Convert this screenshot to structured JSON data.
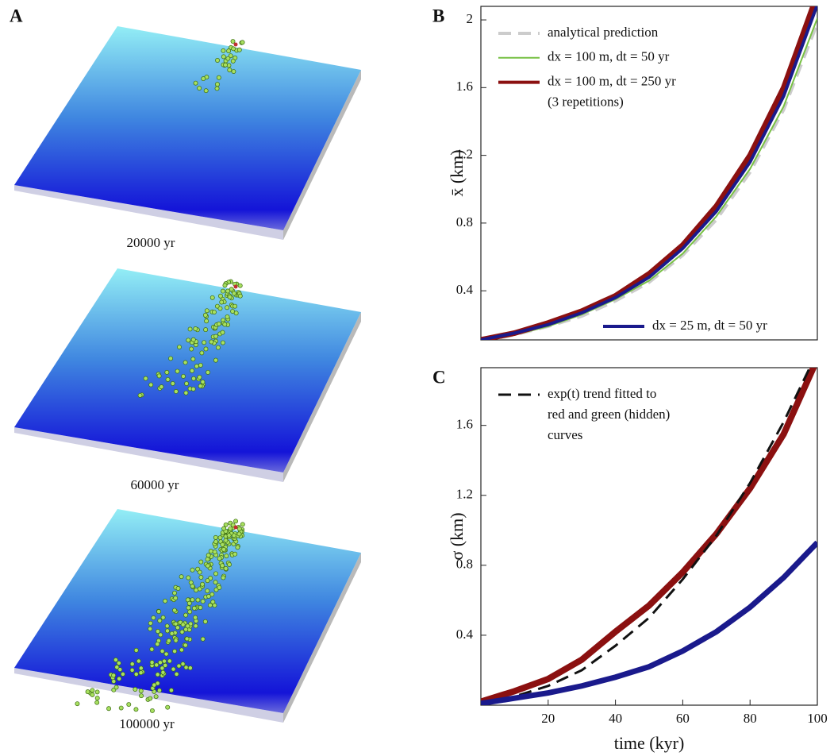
{
  "panel_a": {
    "label": "A",
    "captions": [
      "20000 yr",
      "60000 yr",
      "100000 yr"
    ]
  },
  "chart_data": [
    {
      "type": "line",
      "label": "B",
      "ylabel": "x̄ (km)",
      "x": [
        0,
        10,
        20,
        30,
        40,
        50,
        60,
        70,
        80,
        90,
        100
      ],
      "xlim": [
        0,
        100
      ],
      "ylim": [
        0.11,
        2.08
      ],
      "yticks": [
        0.4,
        0.8,
        1.2,
        1.6,
        2
      ],
      "series": [
        {
          "name": [
            "analytical prediction"
          ],
          "color": "#cccccc",
          "dash": true,
          "width": 4,
          "legend": "upper left",
          "values": [
            0.1,
            0.14,
            0.19,
            0.25,
            0.34,
            0.45,
            0.61,
            0.82,
            1.1,
            1.47,
            1.98
          ]
        },
        {
          "name": [
            "dx = 100 m, dt = 50 yr"
          ],
          "color": "#77c043",
          "dash": false,
          "width": 2,
          "legend": "upper left",
          "values": [
            0.11,
            0.14,
            0.19,
            0.26,
            0.35,
            0.46,
            0.62,
            0.84,
            1.12,
            1.49,
            2.01
          ]
        },
        {
          "name": [
            "dx = 100 m, dt = 250 yr",
            "(3 repetitions)"
          ],
          "color": "#8b1010",
          "dash": false,
          "width": 7,
          "legend": "upper left",
          "values": [
            0.11,
            0.15,
            0.21,
            0.28,
            0.37,
            0.5,
            0.67,
            0.9,
            1.2,
            1.6,
            2.15
          ]
        },
        {
          "name": [
            "dx = 25 m, dt = 50 yr"
          ],
          "color": "#1a1a8c",
          "dash": false,
          "width": 4,
          "legend": "lower right",
          "values": [
            0.11,
            0.15,
            0.2,
            0.27,
            0.36,
            0.48,
            0.65,
            0.87,
            1.16,
            1.55,
            2.09
          ]
        }
      ]
    },
    {
      "type": "line",
      "label": "C",
      "ylabel": "σ (km)",
      "xlabel": "time (kyr)",
      "x": [
        0,
        10,
        20,
        30,
        40,
        50,
        60,
        70,
        80,
        90,
        100
      ],
      "xlim": [
        0,
        100
      ],
      "xticks": [
        20,
        40,
        60,
        80,
        100
      ],
      "ylim": [
        0,
        1.93
      ],
      "yticks": [
        0.4,
        0.8,
        1.2,
        1.6
      ],
      "series": [
        {
          "name": [
            "dx = 100 m, dt = 250 yr"
          ],
          "color": "#8b1010",
          "dash": false,
          "width": 8,
          "values": [
            0.02,
            0.08,
            0.15,
            0.26,
            0.42,
            0.57,
            0.76,
            0.98,
            1.24,
            1.55,
            1.98
          ]
        },
        {
          "name": [
            "exp(t) trend fitted to",
            "red and green (hidden)",
            "curves"
          ],
          "color": "#111111",
          "dash": true,
          "width": 3,
          "legend": "upper left",
          "values": [
            0.0,
            0.05,
            0.11,
            0.2,
            0.34,
            0.5,
            0.72,
            0.97,
            1.27,
            1.62,
            2.02
          ]
        },
        {
          "name": [
            "dx = 25 m, dt = 50 yr"
          ],
          "color": "#1a1a8c",
          "dash": false,
          "width": 7,
          "values": [
            0.01,
            0.04,
            0.07,
            0.11,
            0.16,
            0.22,
            0.31,
            0.42,
            0.56,
            0.73,
            0.93
          ]
        }
      ]
    }
  ]
}
